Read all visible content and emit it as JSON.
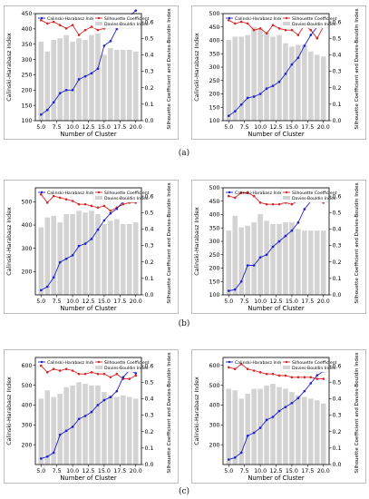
{
  "figure": {
    "captions": [
      "(a)",
      "(b)",
      "(c)"
    ]
  },
  "chart_data": [
    {
      "type": "bar+line",
      "panel": "a-left",
      "xlabel": "Number of Cluster",
      "ylabel_left": "Calinski-Harabasz Index",
      "ylabel_right": "Silhouette Coefficient and Davies-Bouldin Index",
      "x": [
        5,
        6,
        7,
        8,
        9,
        10,
        11,
        12,
        13,
        14,
        15,
        16,
        17,
        18,
        19,
        20
      ],
      "xticks": [
        "5.0",
        "7.5",
        "10.0",
        "12.5",
        "15.0",
        "17.5",
        "20.0"
      ],
      "ylim_left": [
        100,
        450
      ],
      "yticks_left": [
        100,
        150,
        200,
        250,
        300,
        350,
        400,
        450
      ],
      "ylim_right": [
        0,
        0.65
      ],
      "yticks_right": [
        "0.0",
        "0.1",
        "0.2",
        "0.3",
        "0.4",
        "0.5",
        "0.6"
      ],
      "legend_left": "top-left",
      "legend_right": "top-right",
      "series": [
        {
          "name": "Calinski-Harabasz Index",
          "type": "line",
          "axis": "left",
          "color": "#1f1fd1",
          "marker": "dot",
          "values": [
            120,
            135,
            160,
            190,
            200,
            200,
            235,
            245,
            255,
            270,
            345,
            360,
            400,
            430,
            440,
            460
          ]
        },
        {
          "name": "Silhouette Coefficient",
          "type": "line",
          "axis": "right",
          "color": "#d62728",
          "marker": "dot",
          "values": [
            0.61,
            0.59,
            0.6,
            0.58,
            0.56,
            0.58,
            0.52,
            0.55,
            0.57,
            0.55,
            0.56,
            0.58,
            0.61,
            0.6,
            0.62,
            0.6
          ]
        },
        {
          "name": "Davies-Bouldin Index",
          "type": "bar",
          "axis": "right",
          "color": "#d3d3d3",
          "values": [
            0.48,
            0.42,
            0.49,
            0.5,
            0.52,
            0.48,
            0.5,
            0.49,
            0.52,
            0.53,
            0.4,
            0.44,
            0.43,
            0.43,
            0.43,
            0.42
          ]
        }
      ]
    },
    {
      "type": "bar+line",
      "panel": "a-right",
      "xlabel": "Number of Cluster",
      "ylabel_left": "Calinski-Harabasz Index",
      "ylabel_right": "Silhouette Coefficient and Davies-Bouldin Index",
      "x": [
        5,
        6,
        7,
        8,
        9,
        10,
        11,
        12,
        13,
        14,
        15,
        16,
        17,
        18,
        19,
        20
      ],
      "xticks": [
        "5.0",
        "7.5",
        "10.0",
        "12.5",
        "15.0",
        "17.5",
        "20.0"
      ],
      "ylim_left": [
        100,
        500
      ],
      "yticks_left": [
        100,
        150,
        200,
        250,
        300,
        350,
        400,
        450,
        500
      ],
      "ylim_right": [
        0,
        0.65
      ],
      "yticks_right": [
        "0.0",
        "0.1",
        "0.2",
        "0.3",
        "0.4",
        "0.5",
        "0.6"
      ],
      "legend_left": "top-left",
      "legend_right": "top-right",
      "series": [
        {
          "name": "Calinski-Harabasz Index",
          "type": "line",
          "axis": "left",
          "color": "#1f1fd1",
          "marker": "dot",
          "values": [
            118,
            135,
            160,
            185,
            190,
            200,
            220,
            230,
            245,
            275,
            310,
            335,
            380,
            420,
            450,
            490
          ]
        },
        {
          "name": "Silhouette Coefficient",
          "type": "line",
          "axis": "right",
          "color": "#d62728",
          "marker": "dot",
          "values": [
            0.61,
            0.59,
            0.6,
            0.59,
            0.55,
            0.56,
            0.53,
            0.58,
            0.56,
            0.55,
            0.55,
            0.52,
            0.58,
            0.55,
            0.5,
            0.57
          ]
        },
        {
          "name": "Davies-Bouldin Index",
          "type": "bar",
          "axis": "right",
          "color": "#d3d3d3",
          "values": [
            0.49,
            0.51,
            0.51,
            0.52,
            0.57,
            0.56,
            0.54,
            0.51,
            0.52,
            0.47,
            0.45,
            0.46,
            0.46,
            0.42,
            0.4,
            0.39
          ]
        }
      ]
    },
    {
      "type": "bar+line",
      "panel": "b-left",
      "xlabel": "Number of Cluster",
      "ylabel_left": "Calinski-Harabasz Index",
      "ylabel_right": "Silhouette Coefficient and Davies-Bouldin Index",
      "x": [
        5,
        6,
        7,
        8,
        9,
        10,
        11,
        12,
        13,
        14,
        15,
        16,
        17,
        18,
        19,
        20
      ],
      "xticks": [
        "5.0",
        "7.5",
        "10.0",
        "12.5",
        "15.0",
        "17.5",
        "20.0"
      ],
      "ylim_left": [
        100,
        560
      ],
      "yticks_left": [
        200,
        300,
        400,
        500
      ],
      "ylim_right": [
        0,
        0.65
      ],
      "yticks_right": [
        "0.0",
        "0.1",
        "0.2",
        "0.3",
        "0.4",
        "0.5",
        "0.6"
      ],
      "legend_left": "top-left",
      "legend_right": "top-right",
      "series": [
        {
          "name": "Calinski-Harabasz Index",
          "type": "line",
          "axis": "left",
          "color": "#1f1fd1",
          "marker": "dot",
          "values": [
            120,
            135,
            175,
            240,
            255,
            270,
            310,
            320,
            340,
            380,
            420,
            450,
            470,
            500,
            510,
            500
          ]
        },
        {
          "name": "Silhouette Coefficient",
          "type": "line",
          "axis": "right",
          "color": "#d62728",
          "marker": "dot",
          "values": [
            0.61,
            0.56,
            0.6,
            0.59,
            0.58,
            0.57,
            0.55,
            0.55,
            0.54,
            0.53,
            0.54,
            0.51,
            0.53,
            0.55,
            0.56,
            0.56
          ]
        },
        {
          "name": "Davies-Bouldin Index",
          "type": "bar",
          "axis": "right",
          "color": "#d3d3d3",
          "values": [
            0.41,
            0.47,
            0.48,
            0.44,
            0.49,
            0.49,
            0.51,
            0.5,
            0.51,
            0.49,
            0.43,
            0.45,
            0.46,
            0.43,
            0.43,
            0.44
          ]
        }
      ]
    },
    {
      "type": "bar+line",
      "panel": "b-right",
      "xlabel": "Number of Cluster",
      "ylabel_left": "Calinski-Harabasz Index",
      "ylabel_right": "Silhouette Coefficient and Davies-Bouldin Index",
      "x": [
        5,
        6,
        7,
        8,
        9,
        10,
        11,
        12,
        13,
        14,
        15,
        16,
        17,
        18,
        19,
        20
      ],
      "xticks": [
        "5.0",
        "7.5",
        "10.0",
        "12.5",
        "15.0",
        "17.5",
        "20.0"
      ],
      "ylim_left": [
        100,
        500
      ],
      "yticks_left": [
        100,
        150,
        200,
        250,
        300,
        350,
        400,
        450,
        500
      ],
      "ylim_right": [
        0,
        0.65
      ],
      "yticks_right": [
        "0.0",
        "0.1",
        "0.2",
        "0.3",
        "0.4",
        "0.5",
        "0.6"
      ],
      "legend_left": "top-left",
      "legend_right": "top-right",
      "series": [
        {
          "name": "Calinski-Harabasz Index",
          "type": "line",
          "axis": "left",
          "color": "#1f1fd1",
          "marker": "dot",
          "values": [
            115,
            120,
            150,
            210,
            210,
            240,
            250,
            280,
            300,
            320,
            340,
            370,
            420,
            450,
            470,
            480
          ]
        },
        {
          "name": "Silhouette Coefficient",
          "type": "line",
          "axis": "right",
          "color": "#d62728",
          "marker": "dot",
          "values": [
            0.6,
            0.59,
            0.62,
            0.62,
            0.6,
            0.56,
            0.55,
            0.55,
            0.55,
            0.56,
            0.55,
            0.57,
            0.58,
            0.57,
            0.57,
            0.56
          ]
        },
        {
          "name": "Davies-Bouldin Index",
          "type": "bar",
          "axis": "right",
          "color": "#d3d3d3",
          "values": [
            0.39,
            0.48,
            0.41,
            0.42,
            0.44,
            0.49,
            0.45,
            0.43,
            0.43,
            0.44,
            0.44,
            0.4,
            0.39,
            0.39,
            0.39,
            0.39
          ]
        }
      ]
    },
    {
      "type": "bar+line",
      "panel": "c-left",
      "xlabel": "Number of Cluster",
      "ylabel_left": "Calinski-Harabasz Index",
      "ylabel_right": "Silhouette Coefficient and Davies-Bouldin Index",
      "x": [
        5,
        6,
        7,
        8,
        9,
        10,
        11,
        12,
        13,
        14,
        15,
        16,
        17,
        18,
        19,
        20
      ],
      "xticks": [
        "5.0",
        "7.5",
        "10.0",
        "12.5",
        "15.0",
        "17.5",
        "20.0"
      ],
      "ylim_left": [
        100,
        640
      ],
      "yticks_left": [
        200,
        300,
        400,
        500,
        600
      ],
      "ylim_right": [
        0,
        0.65
      ],
      "yticks_right": [
        "0.0",
        "0.1",
        "0.2",
        "0.3",
        "0.4",
        "0.5",
        "0.6"
      ],
      "legend_left": "top-left",
      "legend_right": "top-right",
      "series": [
        {
          "name": "Calinski-Harabasz Index",
          "type": "line",
          "axis": "left",
          "color": "#1f1fd1",
          "marker": "dot",
          "values": [
            130,
            140,
            160,
            250,
            270,
            290,
            330,
            345,
            365,
            400,
            425,
            440,
            470,
            540,
            575,
            560
          ]
        },
        {
          "name": "Silhouette Coefficient",
          "type": "line",
          "axis": "right",
          "color": "#d62728",
          "marker": "dot",
          "values": [
            0.6,
            0.56,
            0.58,
            0.57,
            0.58,
            0.57,
            0.55,
            0.55,
            0.56,
            0.55,
            0.55,
            0.53,
            0.55,
            0.52,
            0.52,
            0.54
          ]
        },
        {
          "name": "Davies-Bouldin Index",
          "type": "bar",
          "axis": "right",
          "color": "#d3d3d3",
          "values": [
            0.4,
            0.45,
            0.41,
            0.43,
            0.47,
            0.48,
            0.5,
            0.49,
            0.48,
            0.48,
            0.44,
            0.42,
            0.41,
            0.42,
            0.41,
            0.4
          ]
        }
      ]
    },
    {
      "type": "bar+line",
      "panel": "c-right",
      "xlabel": "Number of Cluster",
      "ylabel_left": "Calinski-Harabasz Index",
      "ylabel_right": "Silhouette Coefficient and Davies-Bouldin Index",
      "x": [
        5,
        6,
        7,
        8,
        9,
        10,
        11,
        12,
        13,
        14,
        15,
        16,
        17,
        18,
        19,
        20
      ],
      "xticks": [
        "5.0",
        "7.5",
        "10.0",
        "12.5",
        "15.0",
        "17.5",
        "20.0"
      ],
      "ylim_left": [
        100,
        640
      ],
      "yticks_left": [
        200,
        300,
        400,
        500,
        600
      ],
      "ylim_right": [
        0,
        0.65
      ],
      "yticks_right": [
        "0.0",
        "0.1",
        "0.2",
        "0.3",
        "0.4",
        "0.5",
        "0.6"
      ],
      "legend_left": "top-left",
      "legend_right": "top-right",
      "series": [
        {
          "name": "Calinski-Harabasz Index",
          "type": "line",
          "axis": "left",
          "color": "#1f1fd1",
          "marker": "dot",
          "values": [
            125,
            135,
            160,
            245,
            260,
            285,
            325,
            340,
            370,
            390,
            410,
            435,
            470,
            510,
            550,
            570
          ]
        },
        {
          "name": "Silhouette Coefficient",
          "type": "line",
          "axis": "right",
          "color": "#d62728",
          "marker": "dot",
          "values": [
            0.59,
            0.58,
            0.61,
            0.58,
            0.57,
            0.56,
            0.55,
            0.55,
            0.54,
            0.54,
            0.53,
            0.53,
            0.53,
            0.53,
            0.52,
            0.52
          ]
        },
        {
          "name": "Davies-Bouldin Index",
          "type": "bar",
          "axis": "right",
          "color": "#d3d3d3",
          "values": [
            0.46,
            0.45,
            0.4,
            0.43,
            0.46,
            0.46,
            0.48,
            0.49,
            0.47,
            0.46,
            0.44,
            0.42,
            0.41,
            0.4,
            0.39,
            0.37
          ]
        }
      ]
    }
  ]
}
